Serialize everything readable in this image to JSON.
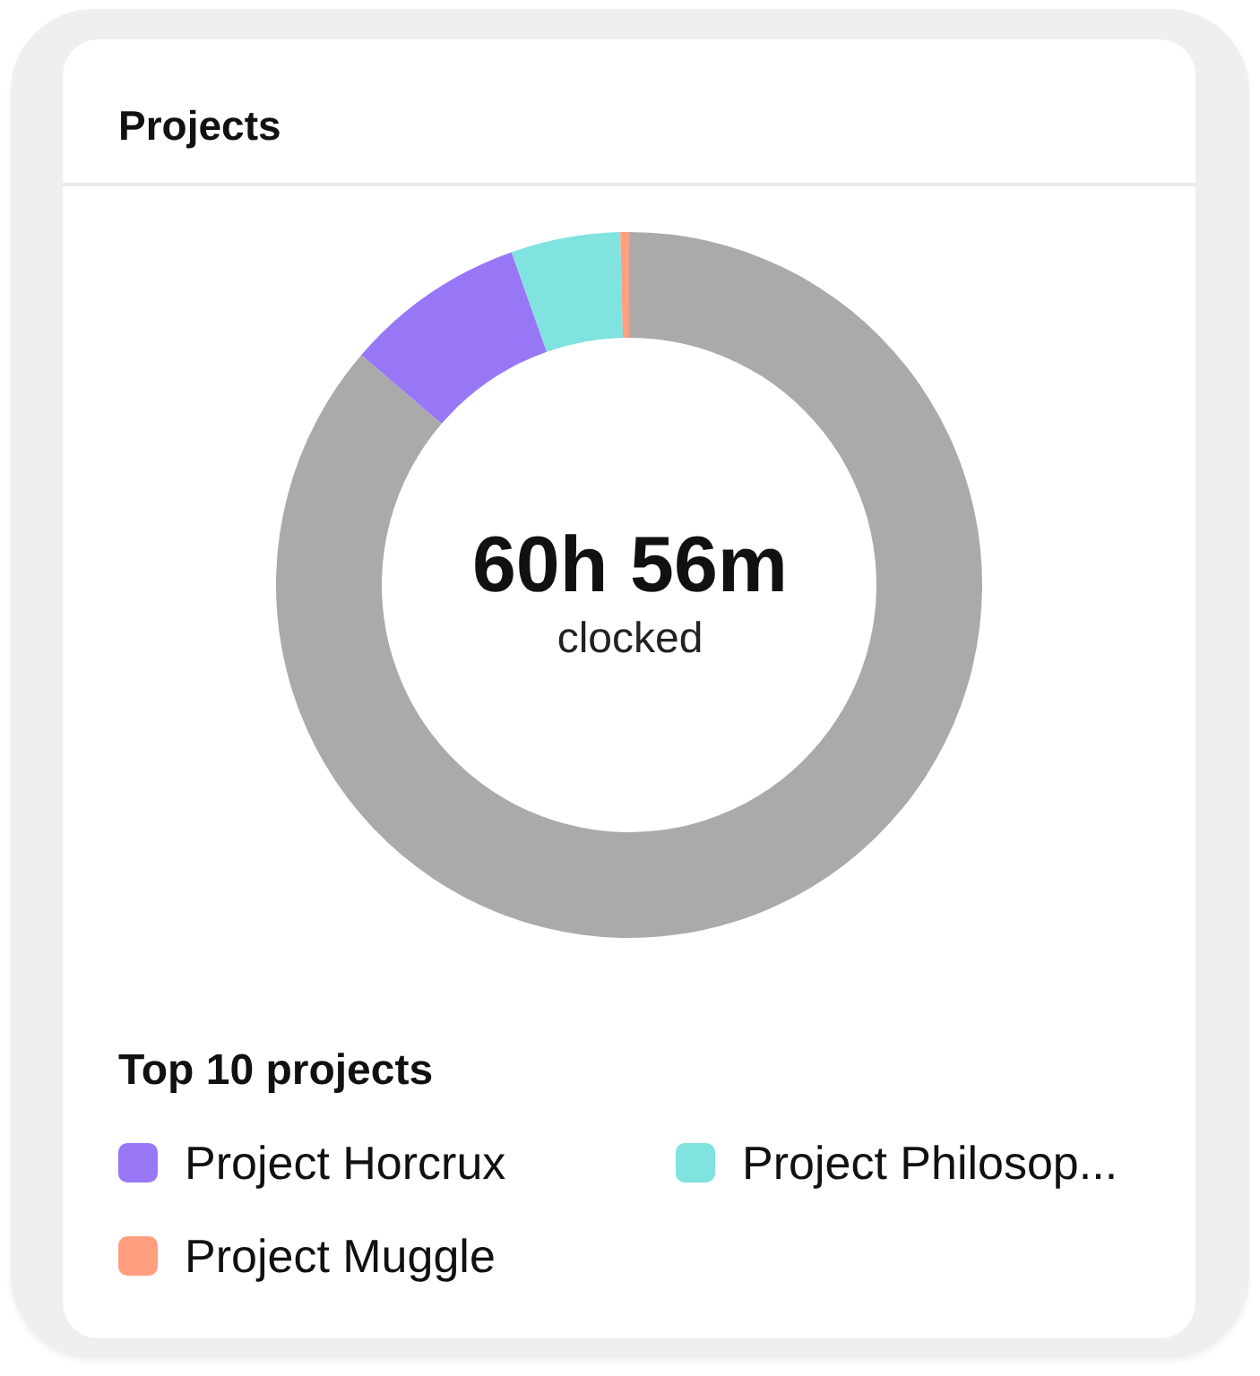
{
  "chart_data": {
    "type": "donut",
    "title": "Projects",
    "legend_title": "Top 10 projects",
    "categories": [
      null,
      "Project Horcrux",
      "Project Philosop...",
      "Project Muggle"
    ],
    "values": [
      86.3,
      8.3,
      5.0,
      0.4
    ],
    "colors": [
      "#aaaaaa",
      "#9877f7",
      "#80e3df",
      "#ff9f7f"
    ],
    "annotations": [
      "60h 56m",
      "clocked"
    ],
    "legend": "bottom"
  }
}
